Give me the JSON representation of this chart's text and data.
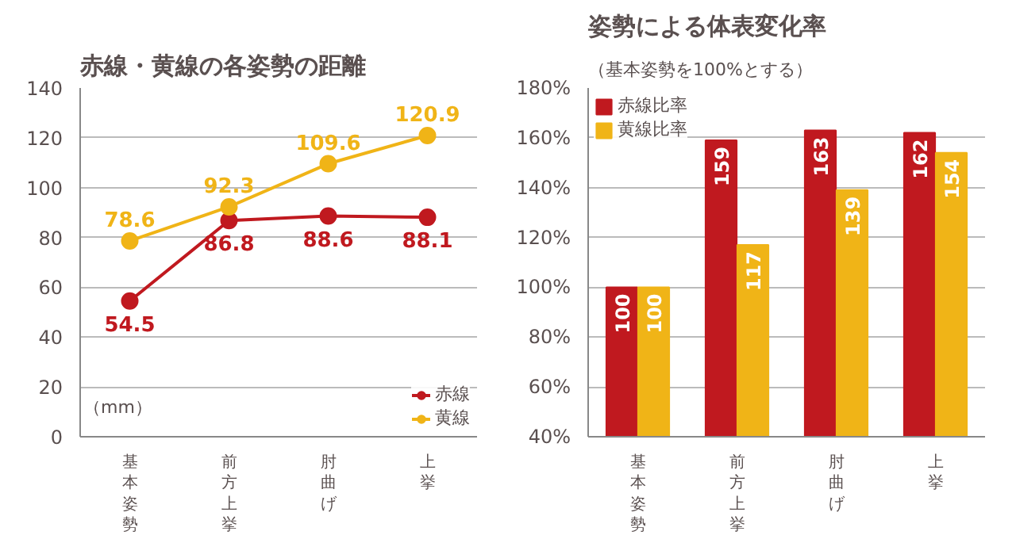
{
  "chart_data": [
    {
      "type": "line",
      "title": "赤線・黄線の各姿勢の距離",
      "ylabel": "（mm）",
      "categories": [
        "基本姿勢",
        "前方上挙",
        "肘曲げ",
        "上挙"
      ],
      "series": [
        {
          "name": "赤線",
          "color": "#c0191f",
          "values": [
            54.5,
            86.8,
            88.6,
            88.1
          ]
        },
        {
          "name": "黄線",
          "color": "#f0b417",
          "values": [
            78.6,
            92.3,
            109.6,
            120.9
          ]
        }
      ],
      "ylim": [
        0,
        140
      ],
      "yticks": [
        0,
        20,
        40,
        60,
        80,
        100,
        120,
        140
      ],
      "grid": "y",
      "legend": "bottom right",
      "marker": "circle",
      "data_labels": true
    },
    {
      "type": "bar",
      "title": "姿勢による体表変化率",
      "subtitle": "（基本姿勢を100%とする）",
      "categories": [
        "基本姿勢",
        "前方上挙",
        "肘曲げ",
        "上挙"
      ],
      "series": [
        {
          "name": "赤線比率",
          "color": "#c0191f",
          "values": [
            100,
            159,
            163,
            162
          ]
        },
        {
          "name": "黄線比率",
          "color": "#f0b417",
          "values": [
            100,
            117,
            139,
            154
          ]
        }
      ],
      "ylim": [
        40,
        180
      ],
      "yticks": [
        {
          "value": 40,
          "label": "40%"
        },
        {
          "value": 60,
          "label": "60%"
        },
        {
          "value": 80,
          "label": "80%"
        },
        {
          "value": 100,
          "label": "100%"
        },
        {
          "value": 120,
          "label": "120%"
        },
        {
          "value": 140,
          "label": "140%"
        },
        {
          "value": 160,
          "label": "160%"
        },
        {
          "value": 180,
          "label": "180%"
        }
      ],
      "grid": "y",
      "legend": "top left",
      "data_labels": true
    }
  ]
}
